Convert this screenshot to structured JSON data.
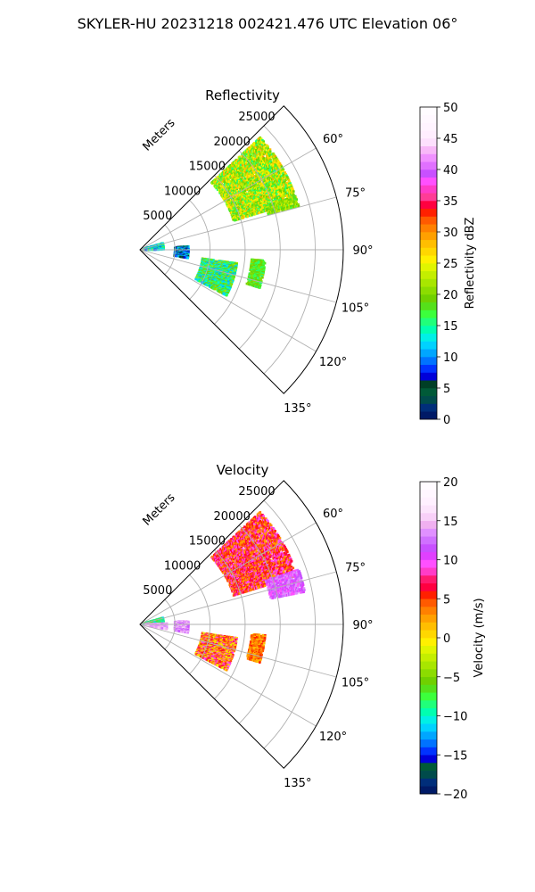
{
  "figure": {
    "suptitle": "SKYLER-HU  20231218  002421.476 UTC Elevation 06°"
  },
  "chart_data": [
    {
      "type": "polar-sector",
      "title": "Reflectivity",
      "radial_label": "Meters",
      "radial_ticks": [
        "5000",
        "10000",
        "15000",
        "20000",
        "25000"
      ],
      "radial_tick_values": [
        5000,
        10000,
        15000,
        20000,
        25000
      ],
      "rmax": 29000,
      "theta_ticks": [
        "60°",
        "75°",
        "90°",
        "105°",
        "120°",
        "135°"
      ],
      "theta_tick_values": [
        60,
        75,
        90,
        105,
        120,
        135
      ],
      "theta_range": [
        45,
        135
      ],
      "grid": true,
      "colorbar": {
        "label": "Reflectivity dBZ",
        "ticks": [
          "0",
          "5",
          "10",
          "15",
          "20",
          "25",
          "30",
          "35",
          "40",
          "45",
          "50"
        ],
        "min": 0,
        "max": 50,
        "step": 1.25,
        "colors": [
          "#001a66",
          "#002e7a",
          "#004b4b",
          "#005a38",
          "#003f26",
          "#0000d9",
          "#0033ff",
          "#0073ff",
          "#00a6ff",
          "#00d2ff",
          "#00f0e6",
          "#00ffb0",
          "#20ff7a",
          "#3cff3c",
          "#55e01a",
          "#70d000",
          "#8cdc00",
          "#a8e600",
          "#c4ee00",
          "#e0f500",
          "#fff000",
          "#ffd700",
          "#ffbe00",
          "#ffa000",
          "#ff8000",
          "#ff5a00",
          "#ff2000",
          "#ff0040",
          "#ff3c96",
          "#ff3cc8",
          "#ff50ff",
          "#c850ff",
          "#e070ff",
          "#f090ff",
          "#f8b8f8",
          "#fde0fd",
          "#ffeefe",
          "#fff4ff",
          "#fff8ff",
          "#fffcff"
        ]
      },
      "echoes": [
        {
          "theta": [
            47,
            73
          ],
          "range": [
            14000,
            23500
          ],
          "value_range": [
            15,
            29
          ]
        },
        {
          "theta": [
            71,
            75
          ],
          "range": [
            19000,
            23500
          ],
          "value_range": [
            17,
            24
          ]
        },
        {
          "theta": [
            74,
            90
          ],
          "range": [
            500,
            3500
          ],
          "value_range": [
            8,
            18
          ]
        },
        {
          "theta": [
            86,
            100
          ],
          "range": [
            5000,
            7000
          ],
          "value_range": [
            3,
            14
          ]
        },
        {
          "theta": [
            98,
            118
          ],
          "range": [
            9000,
            14000
          ],
          "value_range": [
            10,
            22
          ]
        },
        {
          "theta": [
            95,
            108
          ],
          "range": [
            16000,
            18000
          ],
          "value_range": [
            15,
            21
          ]
        }
      ]
    },
    {
      "type": "polar-sector",
      "title": "Velocity",
      "radial_label": "Meters",
      "radial_ticks": [
        "5000",
        "10000",
        "15000",
        "20000",
        "25000"
      ],
      "radial_tick_values": [
        5000,
        10000,
        15000,
        20000,
        25000
      ],
      "rmax": 29000,
      "theta_ticks": [
        "60°",
        "75°",
        "90°",
        "105°",
        "120°",
        "135°"
      ],
      "theta_tick_values": [
        60,
        75,
        90,
        105,
        120,
        135
      ],
      "theta_range": [
        45,
        135
      ],
      "grid": true,
      "colorbar": {
        "label": "Velocity (m/s)",
        "ticks": [
          "−20",
          "−15",
          "−10",
          "−5",
          "0",
          "5",
          "10",
          "15",
          "20"
        ],
        "min": -20,
        "max": 20,
        "step": 1,
        "colors": [
          "#001a66",
          "#002e7a",
          "#004b4b",
          "#005a38",
          "#0000d9",
          "#0033ff",
          "#0073ff",
          "#00a6ff",
          "#00d2ff",
          "#00f0e6",
          "#00ffb0",
          "#20ff7a",
          "#3cff3c",
          "#55e01a",
          "#70d000",
          "#8cdc00",
          "#a8e600",
          "#c4ee00",
          "#e0f500",
          "#fff000",
          "#ffd700",
          "#ffbe00",
          "#ffa000",
          "#ff8000",
          "#ff5a00",
          "#ff2000",
          "#ff0040",
          "#ff1a6e",
          "#ff3cc8",
          "#ff50ff",
          "#e040ff",
          "#c850ff",
          "#d070ff",
          "#e090ff",
          "#f0b0f0",
          "#f8d0f8",
          "#fce4fc",
          "#fff0ff",
          "#fff6ff",
          "#fffbff"
        ]
      },
      "echoes": [
        {
          "theta": [
            47,
            73
          ],
          "range": [
            14000,
            23500
          ],
          "value_range": [
            2,
            10
          ]
        },
        {
          "theta": [
            71,
            79
          ],
          "range": [
            19000,
            24000
          ],
          "value_range": [
            9,
            14
          ]
        },
        {
          "theta": [
            74,
            90
          ],
          "range": [
            500,
            3500
          ],
          "value_range": [
            -12,
            -4
          ]
        },
        {
          "theta": [
            88,
            100
          ],
          "range": [
            800,
            4000
          ],
          "value_range": [
            12,
            16
          ]
        },
        {
          "theta": [
            86,
            100
          ],
          "range": [
            5000,
            7000
          ],
          "value_range": [
            11,
            16
          ]
        },
        {
          "theta": [
            98,
            118
          ],
          "range": [
            9000,
            14000
          ],
          "value_range": [
            -2,
            10
          ]
        },
        {
          "theta": [
            95,
            108
          ],
          "range": [
            16000,
            18000
          ],
          "value_range": [
            1,
            6
          ]
        }
      ]
    }
  ]
}
